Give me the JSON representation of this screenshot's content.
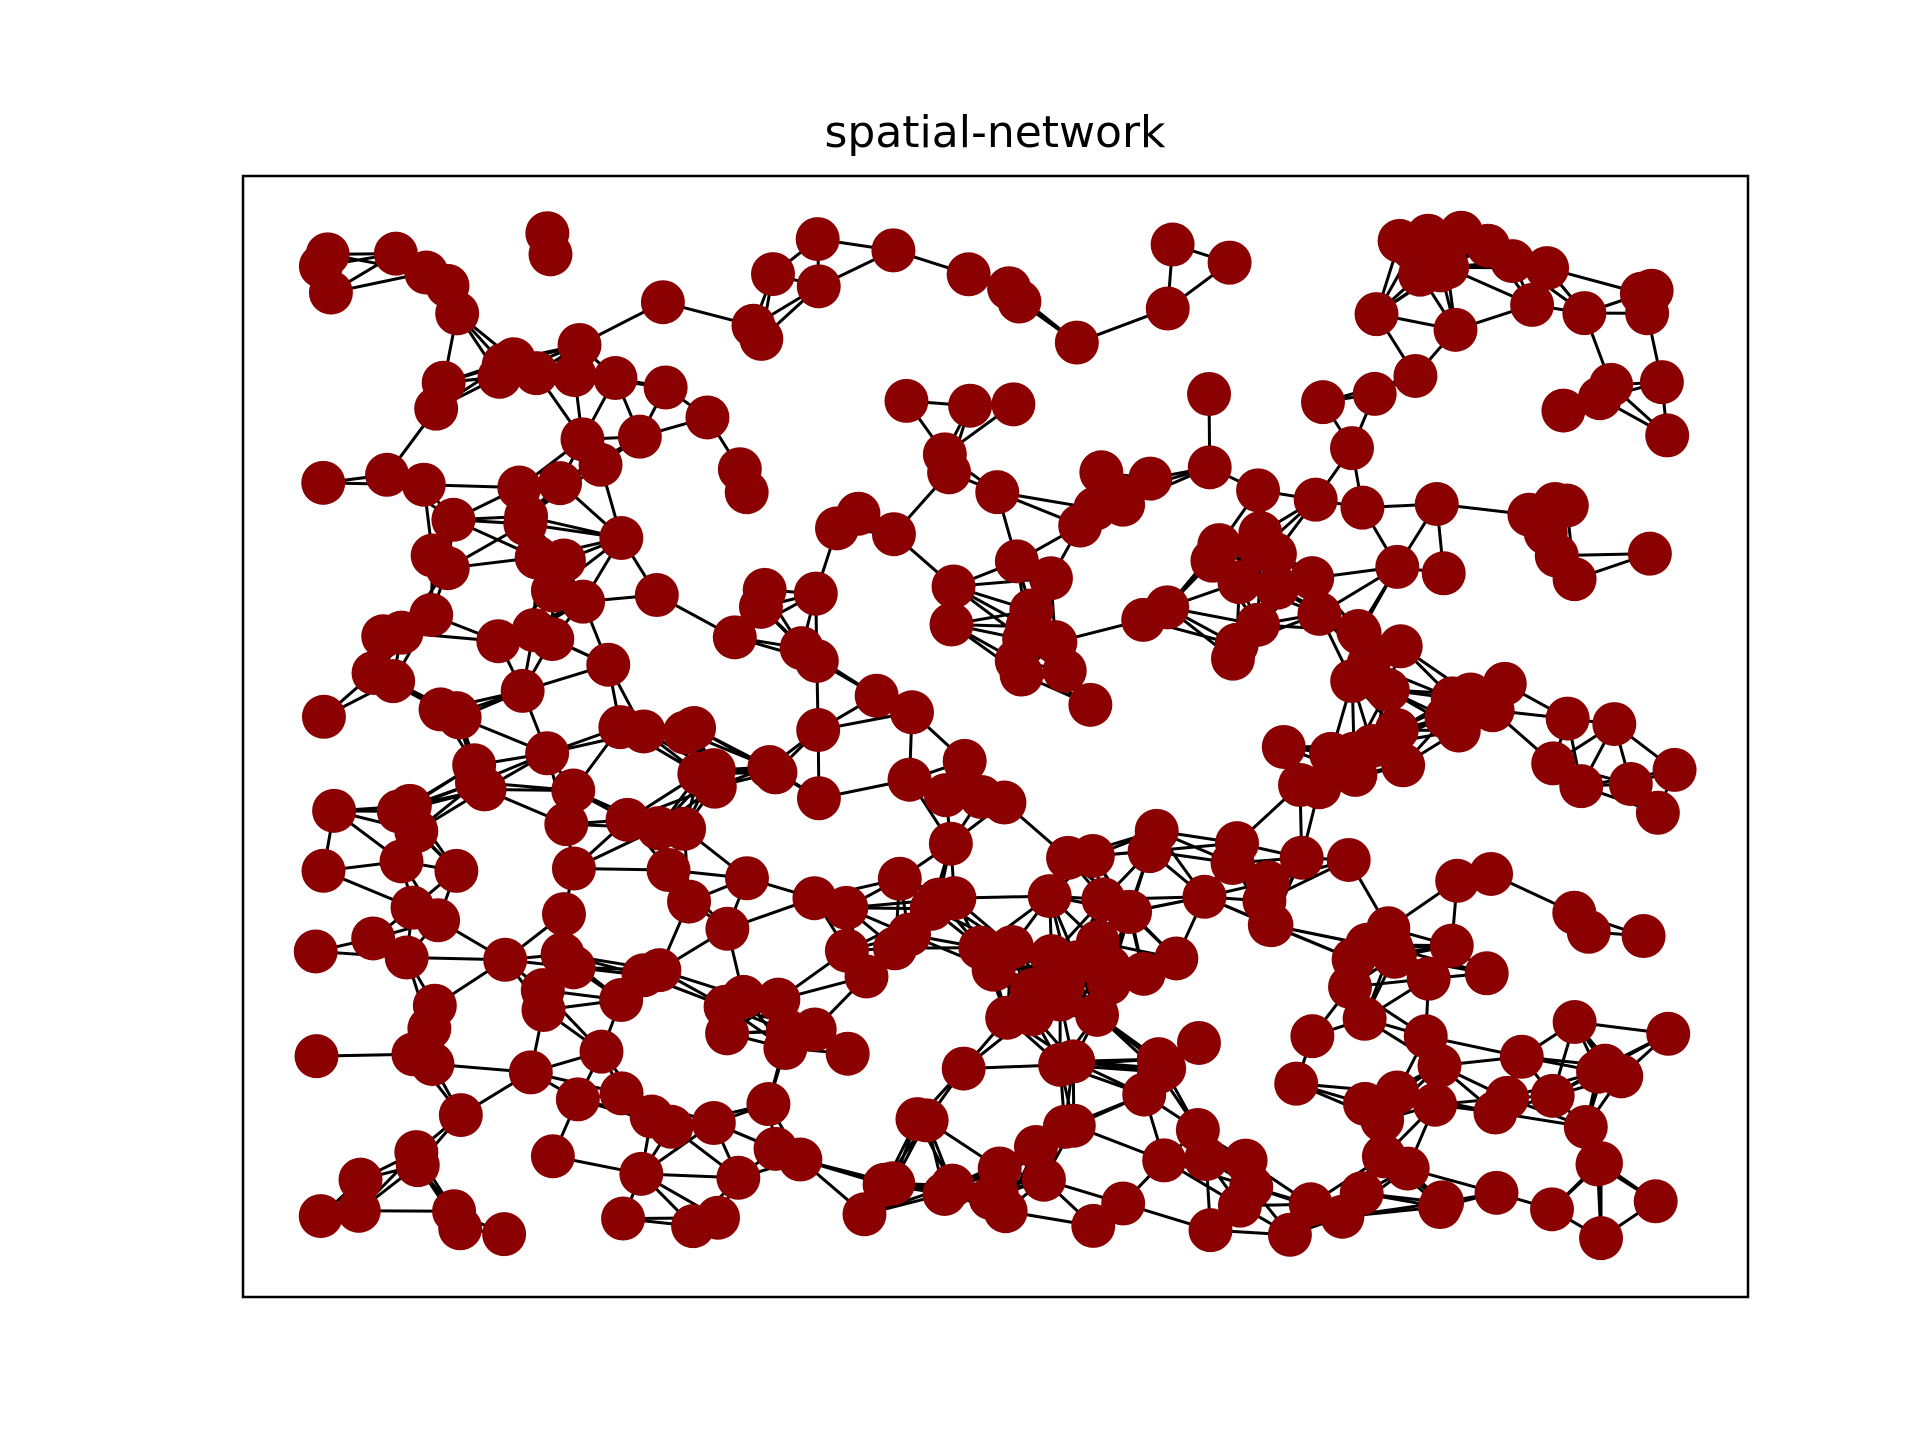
{
  "title": "spatial-network",
  "colors": {
    "node": "#8b0000",
    "edge": "#000000",
    "frame": "#000000",
    "background": "#ffffff"
  },
  "graph": {
    "type": "spatial-network",
    "node_count": 400,
    "connection_radius": 0.075,
    "random_seed": 7,
    "axes": {
      "ticks": false
    }
  }
}
